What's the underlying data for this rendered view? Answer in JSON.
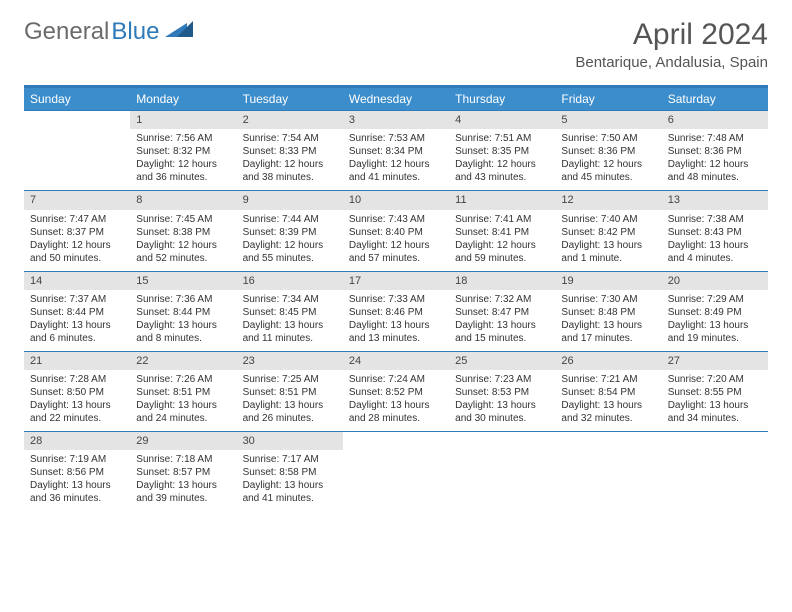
{
  "logo": {
    "word1": "General",
    "word2": "Blue"
  },
  "title": "April 2024",
  "location": "Bentarique, Andalusia, Spain",
  "colors": {
    "header_bar": "#3c8dcc",
    "rule": "#2f7ab8",
    "daynum_bg": "#e4e4e4",
    "logo_gray": "#6b6b6b",
    "logo_blue": "#2f7ab8"
  },
  "daynames": [
    "Sunday",
    "Monday",
    "Tuesday",
    "Wednesday",
    "Thursday",
    "Friday",
    "Saturday"
  ],
  "weeks": [
    [
      {
        "n": "",
        "l1": "",
        "l2": "",
        "l3": "",
        "l4": ""
      },
      {
        "n": "1",
        "l1": "Sunrise: 7:56 AM",
        "l2": "Sunset: 8:32 PM",
        "l3": "Daylight: 12 hours",
        "l4": "and 36 minutes."
      },
      {
        "n": "2",
        "l1": "Sunrise: 7:54 AM",
        "l2": "Sunset: 8:33 PM",
        "l3": "Daylight: 12 hours",
        "l4": "and 38 minutes."
      },
      {
        "n": "3",
        "l1": "Sunrise: 7:53 AM",
        "l2": "Sunset: 8:34 PM",
        "l3": "Daylight: 12 hours",
        "l4": "and 41 minutes."
      },
      {
        "n": "4",
        "l1": "Sunrise: 7:51 AM",
        "l2": "Sunset: 8:35 PM",
        "l3": "Daylight: 12 hours",
        "l4": "and 43 minutes."
      },
      {
        "n": "5",
        "l1": "Sunrise: 7:50 AM",
        "l2": "Sunset: 8:36 PM",
        "l3": "Daylight: 12 hours",
        "l4": "and 45 minutes."
      },
      {
        "n": "6",
        "l1": "Sunrise: 7:48 AM",
        "l2": "Sunset: 8:36 PM",
        "l3": "Daylight: 12 hours",
        "l4": "and 48 minutes."
      }
    ],
    [
      {
        "n": "7",
        "l1": "Sunrise: 7:47 AM",
        "l2": "Sunset: 8:37 PM",
        "l3": "Daylight: 12 hours",
        "l4": "and 50 minutes."
      },
      {
        "n": "8",
        "l1": "Sunrise: 7:45 AM",
        "l2": "Sunset: 8:38 PM",
        "l3": "Daylight: 12 hours",
        "l4": "and 52 minutes."
      },
      {
        "n": "9",
        "l1": "Sunrise: 7:44 AM",
        "l2": "Sunset: 8:39 PM",
        "l3": "Daylight: 12 hours",
        "l4": "and 55 minutes."
      },
      {
        "n": "10",
        "l1": "Sunrise: 7:43 AM",
        "l2": "Sunset: 8:40 PM",
        "l3": "Daylight: 12 hours",
        "l4": "and 57 minutes."
      },
      {
        "n": "11",
        "l1": "Sunrise: 7:41 AM",
        "l2": "Sunset: 8:41 PM",
        "l3": "Daylight: 12 hours",
        "l4": "and 59 minutes."
      },
      {
        "n": "12",
        "l1": "Sunrise: 7:40 AM",
        "l2": "Sunset: 8:42 PM",
        "l3": "Daylight: 13 hours",
        "l4": "and 1 minute."
      },
      {
        "n": "13",
        "l1": "Sunrise: 7:38 AM",
        "l2": "Sunset: 8:43 PM",
        "l3": "Daylight: 13 hours",
        "l4": "and 4 minutes."
      }
    ],
    [
      {
        "n": "14",
        "l1": "Sunrise: 7:37 AM",
        "l2": "Sunset: 8:44 PM",
        "l3": "Daylight: 13 hours",
        "l4": "and 6 minutes."
      },
      {
        "n": "15",
        "l1": "Sunrise: 7:36 AM",
        "l2": "Sunset: 8:44 PM",
        "l3": "Daylight: 13 hours",
        "l4": "and 8 minutes."
      },
      {
        "n": "16",
        "l1": "Sunrise: 7:34 AM",
        "l2": "Sunset: 8:45 PM",
        "l3": "Daylight: 13 hours",
        "l4": "and 11 minutes."
      },
      {
        "n": "17",
        "l1": "Sunrise: 7:33 AM",
        "l2": "Sunset: 8:46 PM",
        "l3": "Daylight: 13 hours",
        "l4": "and 13 minutes."
      },
      {
        "n": "18",
        "l1": "Sunrise: 7:32 AM",
        "l2": "Sunset: 8:47 PM",
        "l3": "Daylight: 13 hours",
        "l4": "and 15 minutes."
      },
      {
        "n": "19",
        "l1": "Sunrise: 7:30 AM",
        "l2": "Sunset: 8:48 PM",
        "l3": "Daylight: 13 hours",
        "l4": "and 17 minutes."
      },
      {
        "n": "20",
        "l1": "Sunrise: 7:29 AM",
        "l2": "Sunset: 8:49 PM",
        "l3": "Daylight: 13 hours",
        "l4": "and 19 minutes."
      }
    ],
    [
      {
        "n": "21",
        "l1": "Sunrise: 7:28 AM",
        "l2": "Sunset: 8:50 PM",
        "l3": "Daylight: 13 hours",
        "l4": "and 22 minutes."
      },
      {
        "n": "22",
        "l1": "Sunrise: 7:26 AM",
        "l2": "Sunset: 8:51 PM",
        "l3": "Daylight: 13 hours",
        "l4": "and 24 minutes."
      },
      {
        "n": "23",
        "l1": "Sunrise: 7:25 AM",
        "l2": "Sunset: 8:51 PM",
        "l3": "Daylight: 13 hours",
        "l4": "and 26 minutes."
      },
      {
        "n": "24",
        "l1": "Sunrise: 7:24 AM",
        "l2": "Sunset: 8:52 PM",
        "l3": "Daylight: 13 hours",
        "l4": "and 28 minutes."
      },
      {
        "n": "25",
        "l1": "Sunrise: 7:23 AM",
        "l2": "Sunset: 8:53 PM",
        "l3": "Daylight: 13 hours",
        "l4": "and 30 minutes."
      },
      {
        "n": "26",
        "l1": "Sunrise: 7:21 AM",
        "l2": "Sunset: 8:54 PM",
        "l3": "Daylight: 13 hours",
        "l4": "and 32 minutes."
      },
      {
        "n": "27",
        "l1": "Sunrise: 7:20 AM",
        "l2": "Sunset: 8:55 PM",
        "l3": "Daylight: 13 hours",
        "l4": "and 34 minutes."
      }
    ],
    [
      {
        "n": "28",
        "l1": "Sunrise: 7:19 AM",
        "l2": "Sunset: 8:56 PM",
        "l3": "Daylight: 13 hours",
        "l4": "and 36 minutes."
      },
      {
        "n": "29",
        "l1": "Sunrise: 7:18 AM",
        "l2": "Sunset: 8:57 PM",
        "l3": "Daylight: 13 hours",
        "l4": "and 39 minutes."
      },
      {
        "n": "30",
        "l1": "Sunrise: 7:17 AM",
        "l2": "Sunset: 8:58 PM",
        "l3": "Daylight: 13 hours",
        "l4": "and 41 minutes."
      },
      {
        "n": "",
        "l1": "",
        "l2": "",
        "l3": "",
        "l4": ""
      },
      {
        "n": "",
        "l1": "",
        "l2": "",
        "l3": "",
        "l4": ""
      },
      {
        "n": "",
        "l1": "",
        "l2": "",
        "l3": "",
        "l4": ""
      },
      {
        "n": "",
        "l1": "",
        "l2": "",
        "l3": "",
        "l4": ""
      }
    ]
  ]
}
